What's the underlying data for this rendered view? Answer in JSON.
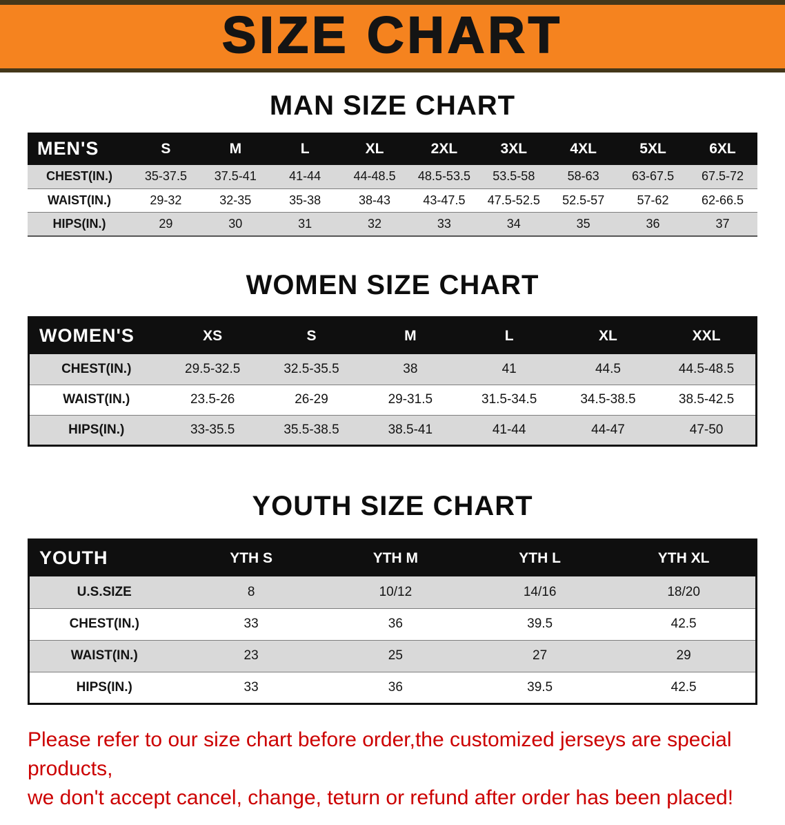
{
  "banner": {
    "title": "SIZE CHART",
    "bg_color": "#f5831f",
    "text_color": "#141414"
  },
  "colors": {
    "header_bg": "#0f0f0f",
    "header_text": "#ffffff",
    "shaded_row": "#d9d9d9",
    "notice_text": "#cc0000"
  },
  "sections": [
    {
      "heading": "MAN SIZE CHART",
      "table": {
        "header": [
          "MEN'S",
          "S",
          "M",
          "L",
          "XL",
          "2XL",
          "3XL",
          "4XL",
          "5XL",
          "6XL"
        ],
        "rows": [
          [
            "CHEST(IN.)",
            "35-37.5",
            "37.5-41",
            "41-44",
            "44-48.5",
            "48.5-53.5",
            "53.5-58",
            "58-63",
            "63-67.5",
            "67.5-72"
          ],
          [
            "WAIST(IN.)",
            "29-32",
            "32-35",
            "35-38",
            "38-43",
            "43-47.5",
            "47.5-52.5",
            "52.5-57",
            "57-62",
            "62-66.5"
          ],
          [
            "HIPS(IN.)",
            "29",
            "30",
            "31",
            "32",
            "33",
            "34",
            "35",
            "36",
            "37"
          ]
        ]
      }
    },
    {
      "heading": "WOMEN SIZE CHART",
      "table": {
        "header": [
          "WOMEN'S",
          "XS",
          "S",
          "M",
          "L",
          "XL",
          "XXL"
        ],
        "rows": [
          [
            "CHEST(IN.)",
            "29.5-32.5",
            "32.5-35.5",
            "38",
            "41",
            "44.5",
            "44.5-48.5"
          ],
          [
            "WAIST(IN.)",
            "23.5-26",
            "26-29",
            "29-31.5",
            "31.5-34.5",
            "34.5-38.5",
            "38.5-42.5"
          ],
          [
            "HIPS(IN.)",
            "33-35.5",
            "35.5-38.5",
            "38.5-41",
            "41-44",
            "44-47",
            "47-50"
          ]
        ]
      }
    },
    {
      "heading": "YOUTH SIZE CHART",
      "table": {
        "header": [
          "YOUTH",
          "YTH S",
          "YTH M",
          "YTH L",
          "YTH XL"
        ],
        "rows": [
          [
            "U.S.SIZE",
            "8",
            "10/12",
            "14/16",
            "18/20"
          ],
          [
            "CHEST(IN.)",
            "33",
            "36",
            "39.5",
            "42.5"
          ],
          [
            "WAIST(IN.)",
            "23",
            "25",
            "27",
            "29"
          ],
          [
            "HIPS(IN.)",
            "33",
            "36",
            "39.5",
            "42.5"
          ]
        ]
      }
    }
  ],
  "footer": {
    "line1": "Please refer to our size chart before order,the customized jerseys are special products,",
    "line2": "we don't accept cancel, change, teturn or refund after order has been placed!"
  }
}
